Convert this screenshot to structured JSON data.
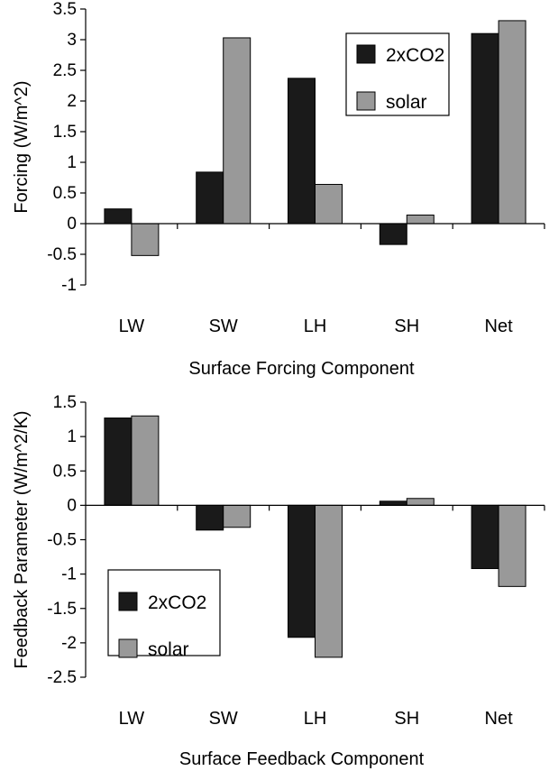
{
  "chart_data": [
    {
      "type": "bar",
      "categories": [
        "LW",
        "SW",
        "LH",
        "SH",
        "Net"
      ],
      "series": [
        {
          "name": "2xCO2",
          "values": [
            0.24,
            0.84,
            2.37,
            -0.34,
            3.1
          ],
          "color": "#1a1a1a"
        },
        {
          "name": "solar",
          "values": [
            -0.52,
            3.03,
            0.64,
            0.14,
            3.31
          ],
          "color": "#999999"
        }
      ],
      "title": "",
      "xlabel": "Surface Forcing Component",
      "ylabel": "Forcing (W/m^2)",
      "ylim": [
        -1,
        3.5
      ],
      "yticks": [
        3.5,
        3,
        2.5,
        2,
        1.5,
        1,
        0.5,
        0,
        -0.5,
        -1
      ],
      "ytick_labels": [
        "3.5",
        "3",
        "2.5",
        "2",
        "1.5",
        "1",
        "0.5",
        "0",
        "-0.5",
        "-1"
      ],
      "grid": false,
      "legend_position": "top-right"
    },
    {
      "type": "bar",
      "categories": [
        "LW",
        "SW",
        "LH",
        "SH",
        "Net"
      ],
      "series": [
        {
          "name": "2xCO2",
          "values": [
            1.27,
            -0.36,
            -1.92,
            0.06,
            -0.92
          ],
          "color": "#1a1a1a"
        },
        {
          "name": "solar",
          "values": [
            1.3,
            -0.32,
            -2.21,
            0.1,
            -1.18
          ],
          "color": "#999999"
        }
      ],
      "title": "",
      "xlabel": "Surface Feedback Component",
      "ylabel": "Feedback Parameter (W/m^2/K)",
      "ylim": [
        -2.5,
        1.5
      ],
      "yticks": [
        1.5,
        1,
        0.5,
        0,
        -0.5,
        -1,
        -1.5,
        -2,
        -2.5
      ],
      "ytick_labels": [
        "1.5",
        "1",
        "0.5",
        "0",
        "-0.5",
        "-1",
        "-1.5",
        "-2",
        "-2.5"
      ],
      "grid": false,
      "legend_position": "bottom-left"
    }
  ]
}
